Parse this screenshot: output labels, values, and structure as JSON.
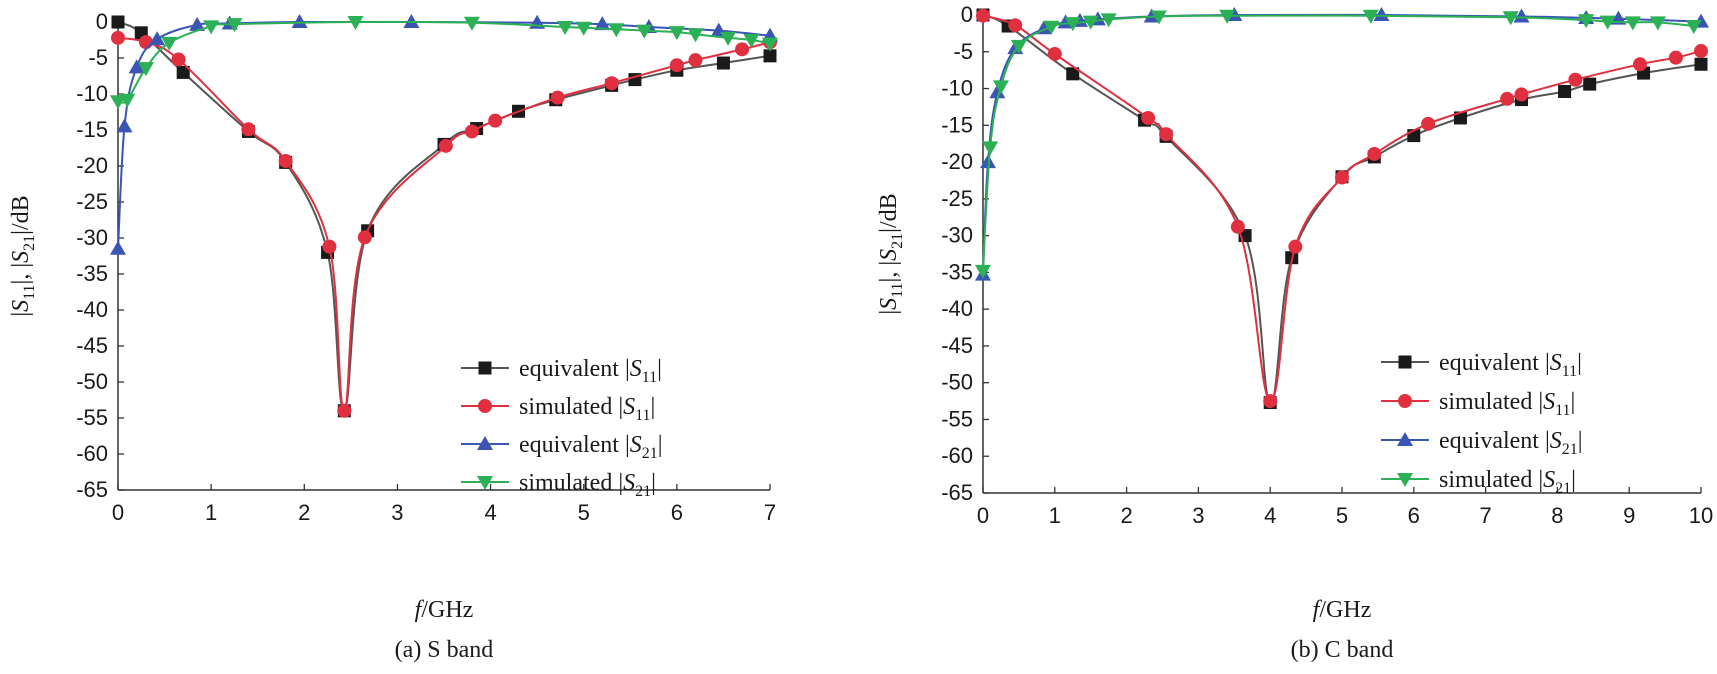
{
  "chart_data": [
    {
      "type": "line",
      "caption": "(a) S band",
      "xlabel_italic": "f",
      "xlabel_rest": "/GHz",
      "ylabel": "|S11|, |S21|/dB",
      "xlim": [
        0,
        7
      ],
      "ylim": [
        -65,
        0
      ],
      "xticks": [
        "0",
        "1",
        "2",
        "3",
        "4",
        "5",
        "6",
        "7"
      ],
      "yticks": [
        "0",
        "-5",
        "-10",
        "-15",
        "-20",
        "-25",
        "-30",
        "-35",
        "-40",
        "-45",
        "-50",
        "-55",
        "-60",
        "-65"
      ],
      "legend_position": "bottom-right",
      "series": [
        {
          "legend_pre": "equivalent |",
          "legend_sym": "S",
          "legend_sub": "11",
          "legend_post": "|",
          "color": "#555555",
          "marker": "square",
          "markerColor": "#1a1a1a",
          "x": [
            0,
            0.25,
            0.7,
            1.4,
            1.8,
            2.25,
            2.43,
            2.68,
            3.5,
            3.85,
            4.3,
            4.7,
            5.3,
            5.55,
            6.0,
            6.5,
            7.0
          ],
          "y": [
            0,
            -1.5,
            -7,
            -15.2,
            -19.5,
            -32,
            -54,
            -29,
            -17,
            -14.8,
            -12.4,
            -10.8,
            -8.8,
            -8,
            -6.7,
            -5.7,
            -4.7
          ]
        },
        {
          "legend_pre": "simulated |",
          "legend_sym": "S",
          "legend_sub": "11",
          "legend_post": "|",
          "color": "#e03040",
          "marker": "circle",
          "markerColor": "#e03040",
          "x": [
            0,
            0.3,
            0.65,
            1.4,
            1.8,
            2.27,
            2.43,
            2.65,
            3.52,
            3.8,
            4.05,
            4.72,
            5.3,
            6.0,
            6.2,
            6.7,
            7.0
          ],
          "y": [
            -2.2,
            -2.8,
            -5.2,
            -14.9,
            -19.3,
            -31.2,
            -54,
            -29.9,
            -17.2,
            -15.2,
            -13.7,
            -10.5,
            -8.5,
            -6,
            -5.3,
            -3.8,
            -2.8
          ]
        },
        {
          "legend_pre": "equivalent |",
          "legend_sym": "S",
          "legend_sub": "21",
          "legend_post": "|",
          "color": "#3a55b4",
          "marker": "triangle-up",
          "markerColor": "#3a55b4",
          "x": [
            0,
            0.07,
            0.2,
            0.42,
            0.85,
            1.2,
            1.95,
            3.15,
            4.5,
            5.2,
            5.7,
            6.45,
            7.0
          ],
          "y": [
            -31.5,
            -14.5,
            -6.3,
            -2.4,
            -0.4,
            -0.2,
            0,
            0,
            -0.1,
            -0.3,
            -0.7,
            -1.2,
            -1.9
          ]
        },
        {
          "legend_pre": "simulated |",
          "legend_sym": "S",
          "legend_sub": "21",
          "legend_post": "|",
          "color": "#2bb055",
          "marker": "triangle-down",
          "markerColor": "#2bb055",
          "x": [
            0,
            0.1,
            0.3,
            0.55,
            1.0,
            1.25,
            2.55,
            3.8,
            4.8,
            5.0,
            5.35,
            5.65,
            6.0,
            6.2,
            6.55,
            6.8,
            7.0
          ],
          "y": [
            -11,
            -10.8,
            -6.4,
            -2.9,
            -0.6,
            -0.3,
            0,
            -0.1,
            -0.7,
            -0.8,
            -1,
            -1.2,
            -1.4,
            -1.7,
            -2.2,
            -2.5,
            -3
          ]
        }
      ]
    },
    {
      "type": "line",
      "caption": "(b) C band",
      "xlabel_italic": "f",
      "xlabel_rest": "/GHz",
      "ylabel": "|S11|, |S21|/dB",
      "xlim": [
        0,
        10
      ],
      "ylim": [
        -65,
        0
      ],
      "xticks": [
        "0",
        "1",
        "2",
        "3",
        "4",
        "5",
        "6",
        "7",
        "8",
        "9",
        "10"
      ],
      "yticks": [
        "0",
        "-5",
        "-10",
        "-15",
        "-20",
        "-25",
        "-30",
        "-35",
        "-40",
        "-45",
        "-50",
        "-55",
        "-60",
        "-65"
      ],
      "legend_position": "bottom-right",
      "series": [
        {
          "legend_pre": "equivalent |",
          "legend_sym": "S",
          "legend_sub": "11",
          "legend_post": "|",
          "color": "#555555",
          "marker": "square",
          "markerColor": "#1a1a1a",
          "x": [
            0,
            0.35,
            1.25,
            2.25,
            2.55,
            3.65,
            4.0,
            4.3,
            5.0,
            5.45,
            6.0,
            6.65,
            7.5,
            8.1,
            8.45,
            9.2,
            10.0
          ],
          "y": [
            0,
            -1.5,
            -8,
            -14.3,
            -16.5,
            -30,
            -52.7,
            -33,
            -22,
            -19.3,
            -16.4,
            -14,
            -11.5,
            -10.4,
            -9.4,
            -7.9,
            -6.7
          ]
        },
        {
          "legend_pre": "simulated |",
          "legend_sym": "S",
          "legend_sub": "11",
          "legend_post": "|",
          "color": "#e03040",
          "marker": "circle",
          "markerColor": "#e03040",
          "x": [
            0,
            0.45,
            1.0,
            2.3,
            2.55,
            3.55,
            4.0,
            4.35,
            5.0,
            5.45,
            6.2,
            7.3,
            7.5,
            8.25,
            9.15,
            9.65,
            10.0
          ],
          "y": [
            -0.1,
            -1.4,
            -5.3,
            -14,
            -16.2,
            -28.8,
            -52.5,
            -31.5,
            -22.1,
            -18.9,
            -14.8,
            -11.4,
            -10.8,
            -8.8,
            -6.7,
            -5.8,
            -4.9
          ]
        },
        {
          "legend_pre": "equivalent |",
          "legend_sym": "S",
          "legend_sub": "21",
          "legend_post": "|",
          "color": "#3a55b4",
          "marker": "triangle-up",
          "markerColor": "#3a55b4",
          "x": [
            0,
            0.07,
            0.2,
            0.45,
            0.85,
            1.15,
            1.35,
            1.6,
            2.35,
            3.5,
            5.55,
            7.5,
            8.4,
            8.85,
            10.0
          ],
          "y": [
            -35.3,
            -20,
            -10.5,
            -4.5,
            -1.8,
            -1,
            -0.8,
            -0.6,
            -0.2,
            0,
            0,
            -0.2,
            -0.4,
            -0.5,
            -0.9
          ]
        },
        {
          "legend_pre": "simulated |",
          "legend_sym": "S",
          "legend_sub": "21",
          "legend_post": "|",
          "color": "#2bb055",
          "marker": "triangle-down",
          "markerColor": "#2bb055",
          "x": [
            0,
            0.1,
            0.25,
            0.5,
            0.95,
            1.25,
            1.5,
            1.75,
            2.45,
            3.4,
            5.4,
            7.35,
            8.4,
            8.7,
            9.05,
            9.4,
            9.9
          ],
          "y": [
            -34.8,
            -18,
            -9.7,
            -4.2,
            -1.6,
            -1.1,
            -0.9,
            -0.6,
            -0.2,
            -0.1,
            -0.1,
            -0.3,
            -0.7,
            -0.9,
            -1,
            -1,
            -1.5
          ]
        }
      ]
    }
  ]
}
